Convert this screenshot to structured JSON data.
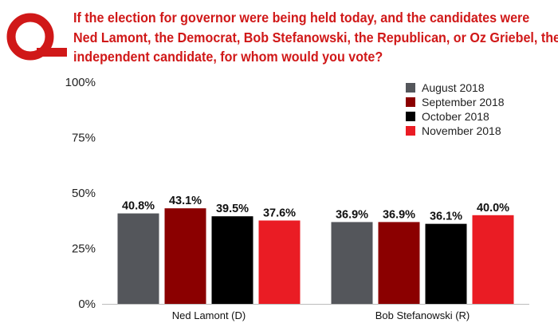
{
  "header": {
    "logo_icon": "q-logo-icon",
    "question_lines": [
      "If the election for governor were being held today, and the candidates were",
      "Ned Lamont, the Democrat, Bob Stefanowski, the Republican, or Oz Griebel, the",
      "independent candidate, for whom would you vote?"
    ]
  },
  "colors": {
    "brand": "#d01818"
  },
  "chart_data": {
    "type": "bar",
    "title": "",
    "xlabel": "",
    "ylabel": "",
    "categories": [
      "Ned Lamont (D)",
      "Bob Stefanowski (R)"
    ],
    "series": [
      {
        "name": "August 2018",
        "color": "#54565b",
        "values": [
          40.8,
          36.9
        ],
        "labels": [
          "40.8%",
          "36.9%"
        ]
      },
      {
        "name": "September 2018",
        "color": "#8b0000",
        "values": [
          43.1,
          36.9
        ],
        "labels": [
          "43.1%",
          "36.9%"
        ]
      },
      {
        "name": "October 2018",
        "color": "#000000",
        "values": [
          39.5,
          36.1
        ],
        "labels": [
          "39.5%",
          "36.1%"
        ]
      },
      {
        "name": "November 2018",
        "color": "#ea1c24",
        "values": [
          37.6,
          40.0
        ],
        "labels": [
          "37.6%",
          "40.0%"
        ]
      }
    ],
    "yticks": [
      "0%",
      "25%",
      "50%",
      "75%",
      "100%"
    ],
    "ylim": [
      0,
      100
    ],
    "grid": false,
    "legend": "top-right"
  }
}
